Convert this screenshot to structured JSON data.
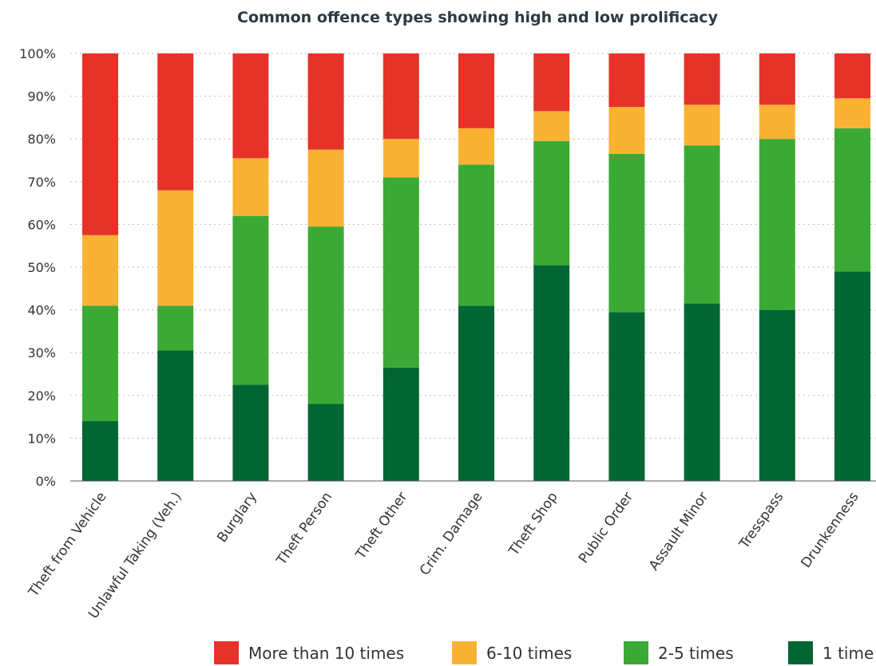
{
  "chart_data": {
    "type": "bar",
    "stacked": true,
    "title": "Common offence types showing high and low prolificacy",
    "xlabel": "",
    "ylabel": "",
    "ylim": [
      0,
      100
    ],
    "yticks": [
      "0%",
      "10%",
      "20%",
      "30%",
      "40%",
      "50%",
      "60%",
      "70%",
      "80%",
      "90%",
      "100%"
    ],
    "grid": true,
    "legend_position": "bottom-right",
    "categories": [
      "Theft from Vehicle",
      "Unlawful Taking (Veh.)",
      "Burglary",
      "Theft Person",
      "Theft Other",
      "Crim. Damage",
      "Theft Shop",
      "Public Order",
      "Assault Minor",
      "Tresspass",
      "Drunkenness"
    ],
    "series": [
      {
        "name": "1 time",
        "color": "#006633",
        "values": [
          14,
          30.5,
          22.5,
          18,
          26.5,
          41,
          50.5,
          39.5,
          41.5,
          40,
          49
        ]
      },
      {
        "name": "2-5 times",
        "color": "#3aaa35",
        "values": [
          27,
          10.5,
          39.5,
          41.5,
          44.5,
          33,
          29,
          37,
          37,
          40,
          33.5
        ]
      },
      {
        "name": "6-10 times",
        "color": "#f9b233",
        "values": [
          16.5,
          27,
          13.5,
          18,
          9,
          8.5,
          7,
          11,
          9.5,
          8,
          7
        ]
      },
      {
        "name": "More than 10 times",
        "color": "#e6332a",
        "values": [
          42.5,
          32,
          24.5,
          22.5,
          20,
          17.5,
          13.5,
          12.5,
          12,
          12,
          10.5
        ]
      }
    ],
    "legend_order": [
      "More than 10 times",
      "6-10 times",
      "2-5 times",
      "1 time"
    ]
  }
}
